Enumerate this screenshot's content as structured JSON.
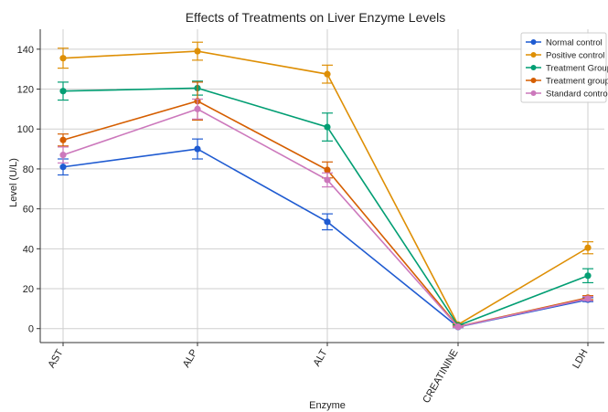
{
  "chart_data": {
    "type": "line",
    "title": "Effects of Treatments on Liver Enzyme Levels",
    "xlabel": "Enzyme",
    "ylabel": "Level (U/L)",
    "categories": [
      "AST",
      "ALP",
      "ALT",
      "CREATININE",
      "LDH"
    ],
    "ylim": [
      -7,
      150
    ],
    "yticks": [
      0,
      20,
      40,
      60,
      80,
      100,
      120,
      140
    ],
    "grid": true,
    "legend_position": "top-right",
    "series": [
      {
        "name": "Normal control",
        "color": "#1f5bd1",
        "values": [
          81,
          90,
          53.5,
          0.8,
          14.5
        ],
        "errors": [
          4,
          5,
          4,
          0.3,
          1
        ]
      },
      {
        "name": "Positive control",
        "color": "#de8f05",
        "values": [
          135.5,
          139,
          127.5,
          2,
          40.5
        ],
        "errors": [
          5,
          4.5,
          4.5,
          0.4,
          3
        ]
      },
      {
        "name": "Treatment Group 1",
        "color": "#029e73",
        "values": [
          119,
          120.5,
          101,
          1.5,
          26.5
        ],
        "errors": [
          4.5,
          3.5,
          7,
          0.4,
          3.5
        ]
      },
      {
        "name": "Treatment group 2",
        "color": "#d55e00",
        "values": [
          94.5,
          114,
          79.5,
          1,
          15.5
        ],
        "errors": [
          3,
          9.5,
          4,
          0.3,
          1
        ]
      },
      {
        "name": "Standard control",
        "color": "#cc78bc",
        "values": [
          87,
          110,
          74.5,
          0.9,
          15
        ],
        "errors": [
          4,
          5,
          3.5,
          0.3,
          1
        ]
      }
    ]
  }
}
